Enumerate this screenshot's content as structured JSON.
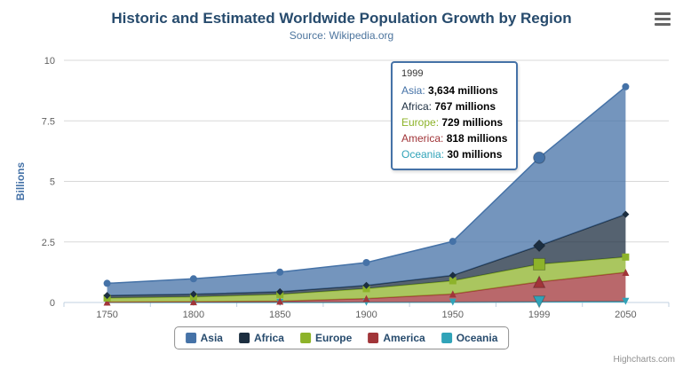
{
  "chart_data": {
    "type": "area",
    "stacking": "normal",
    "title": "Historic and Estimated Worldwide Population Growth by Region",
    "subtitle": "Source: Wikipedia.org",
    "categories": [
      "1750",
      "1800",
      "1850",
      "1900",
      "1950",
      "1999",
      "2050"
    ],
    "series": [
      {
        "name": "Asia",
        "color": "#4572A7",
        "marker": "circle",
        "values_millions": [
          502,
          635,
          809,
          947,
          1402,
          3634,
          5268
        ]
      },
      {
        "name": "Africa",
        "color": "#1C2E40",
        "marker": "diamond",
        "values_millions": [
          106,
          107,
          111,
          133,
          221,
          767,
          1766
        ]
      },
      {
        "name": "Europe",
        "color": "#8DB32A",
        "marker": "square",
        "values_millions": [
          163,
          203,
          276,
          408,
          547,
          729,
          628
        ]
      },
      {
        "name": "America",
        "color": "#A13539",
        "marker": "triangle",
        "values_millions": [
          18,
          31,
          54,
          156,
          339,
          818,
          1201
        ]
      },
      {
        "name": "Oceania",
        "color": "#30A3B8",
        "marker": "triangle-down",
        "values_millions": [
          2,
          2,
          2,
          6,
          13,
          30,
          46
        ]
      }
    ],
    "xlabel": "",
    "ylabel": "Billions",
    "ylim": [
      0,
      10
    ],
    "yticks": [
      0,
      2.5,
      5,
      7.5,
      10
    ],
    "ytick_labels": [
      "0",
      "2.5",
      "5",
      "7.5",
      "10"
    ],
    "unit": "millions",
    "grid": true,
    "legend_position": "bottom"
  },
  "tooltip": {
    "header": "1999",
    "rows": [
      {
        "series": "Asia",
        "value": "3,634 millions"
      },
      {
        "series": "Africa",
        "value": "767 millions"
      },
      {
        "series": "Europe",
        "value": "729 millions"
      },
      {
        "series": "America",
        "value": "818 millions"
      },
      {
        "series": "Oceania",
        "value": "30 millions"
      }
    ]
  },
  "icons": {
    "menu": "hamburger-icon"
  },
  "credits": "Highcharts.com"
}
